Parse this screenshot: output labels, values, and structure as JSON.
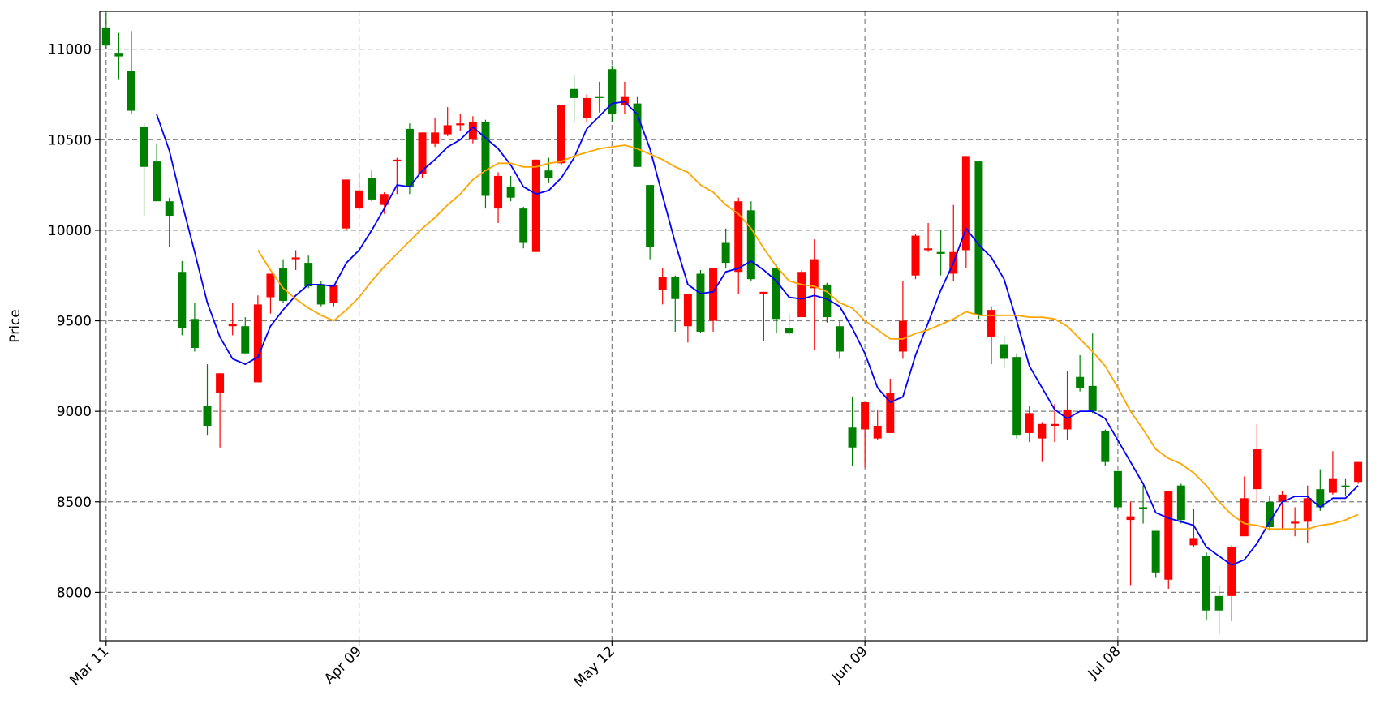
{
  "chart_data": {
    "type": "candlestick",
    "y_label": "Price",
    "categories": [
      "Mar 11",
      null,
      null,
      null,
      null,
      null,
      null,
      null,
      null,
      null,
      null,
      null,
      null,
      null,
      null,
      null,
      null,
      null,
      null,
      null,
      "Apr 09",
      null,
      null,
      null,
      null,
      null,
      null,
      null,
      null,
      null,
      null,
      null,
      null,
      null,
      null,
      null,
      null,
      null,
      null,
      null,
      "May 12",
      null,
      null,
      null,
      null,
      null,
      null,
      null,
      null,
      null,
      null,
      null,
      null,
      null,
      null,
      null,
      null,
      null,
      null,
      null,
      "Jun 09",
      null,
      null,
      null,
      null,
      null,
      null,
      null,
      null,
      null,
      null,
      null,
      null,
      null,
      null,
      null,
      null,
      null,
      null,
      null,
      "Jul 08",
      null,
      null,
      null,
      null,
      null,
      null,
      null,
      null,
      null,
      null,
      null,
      null,
      null,
      null,
      null,
      null,
      null,
      null,
      null
    ],
    "open": [
      11120,
      10980,
      10880,
      10570,
      10380,
      10160,
      9770,
      9510,
      9030,
      9100,
      9470,
      9470,
      9160,
      9630,
      9790,
      9840,
      9820,
      9700,
      9600,
      10010,
      10120,
      10290,
      10140,
      10380,
      10560,
      10310,
      10480,
      10530,
      10580,
      10500,
      10600,
      10120,
      10240,
      10120,
      9880,
      10330,
      10370,
      10780,
      10620,
      10740,
      10890,
      10690,
      10700,
      10250,
      9670,
      9740,
      9470,
      9760,
      9500,
      9930,
      9770,
      10110,
      9650,
      9790,
      9460,
      9520,
      9680,
      9700,
      9470,
      8910,
      8900,
      8850,
      8880,
      9330,
      9750,
      9890,
      9880,
      9760,
      9890,
      10380,
      9410,
      9370,
      9300,
      8880,
      8850,
      8920,
      8900,
      9190,
      9140,
      8890,
      8670,
      8400,
      8470,
      8340,
      8070,
      8590,
      8260,
      8200,
      7980,
      7980,
      8310,
      8570,
      8500,
      8500,
      8380,
      8390,
      8570,
      8550,
      8590,
      8610
    ],
    "high": [
      11200,
      11090,
      11100,
      10590,
      10480,
      10180,
      9830,
      9600,
      9260,
      9210,
      9600,
      9520,
      9640,
      9760,
      9840,
      9890,
      9860,
      9720,
      9700,
      10280,
      10320,
      10330,
      10210,
      10400,
      10590,
      10540,
      10620,
      10680,
      10640,
      10630,
      10610,
      10320,
      10300,
      10130,
      10390,
      10400,
      10690,
      10860,
      10750,
      10820,
      10910,
      10820,
      10740,
      10250,
      9790,
      9750,
      9650,
      9780,
      9790,
      10010,
      10180,
      10160,
      9660,
      9810,
      9540,
      9780,
      9950,
      9710,
      9500,
      9080,
      9050,
      9010,
      9180,
      9720,
      9980,
      10040,
      10000,
      10140,
      10410,
      10380,
      9580,
      9420,
      9320,
      9030,
      8940,
      9040,
      9220,
      9310,
      9430,
      8900,
      8670,
      8500,
      8590,
      8340,
      8560,
      8600,
      8460,
      8220,
      8040,
      8260,
      8640,
      8930,
      8530,
      8560,
      8470,
      8590,
      8680,
      8780,
      8630,
      8720
    ],
    "low": [
      11000,
      10830,
      10640,
      10080,
      10160,
      9910,
      9420,
      9330,
      8870,
      8800,
      9420,
      9320,
      9160,
      9540,
      9600,
      9780,
      9680,
      9580,
      9580,
      10000,
      10110,
      10160,
      10090,
      10200,
      10200,
      10290,
      10460,
      10520,
      10550,
      10480,
      10120,
      10040,
      10160,
      9900,
      9880,
      10260,
      10360,
      10600,
      10600,
      10650,
      10600,
      10640,
      10350,
      9840,
      9590,
      9440,
      9380,
      9430,
      9440,
      9790,
      9650,
      9720,
      9390,
      9430,
      9420,
      9520,
      9340,
      9490,
      9290,
      8700,
      8690,
      8840,
      8880,
      9290,
      9730,
      9880,
      9750,
      9720,
      9790,
      9510,
      9260,
      9240,
      8850,
      8830,
      8720,
      8830,
      8840,
      9110,
      8990,
      8700,
      8460,
      8040,
      8380,
      8080,
      8020,
      8380,
      8250,
      7850,
      7770,
      7840,
      8310,
      8500,
      8340,
      8350,
      8310,
      8270,
      8450,
      8540,
      8530,
      8600
    ],
    "close": [
      11020,
      10960,
      10660,
      10350,
      10160,
      10080,
      9460,
      9350,
      8920,
      9210,
      9480,
      9320,
      9590,
      9760,
      9610,
      9850,
      9690,
      9590,
      9700,
      10280,
      10220,
      10170,
      10200,
      10390,
      10240,
      10540,
      10540,
      10580,
      10590,
      10600,
      10190,
      10300,
      10180,
      9930,
      10390,
      10290,
      10690,
      10730,
      10730,
      10730,
      10640,
      10740,
      10350,
      9910,
      9740,
      9620,
      9650,
      9440,
      9790,
      9820,
      10160,
      9730,
      9660,
      9510,
      9430,
      9770,
      9840,
      9520,
      9330,
      8800,
      9050,
      8920,
      9100,
      9500,
      9970,
      9900,
      9870,
      9880,
      10410,
      9530,
      9560,
      9290,
      8870,
      8990,
      8930,
      8930,
      9010,
      9130,
      9000,
      8720,
      8470,
      8420,
      8460,
      8110,
      8560,
      8400,
      8300,
      7900,
      7900,
      8250,
      8520,
      8790,
      8360,
      8540,
      8390,
      8520,
      8470,
      8630,
      8580,
      8720
    ],
    "up_color": "#ff0000",
    "down_color": "#008000",
    "series": [
      {
        "color": "#0000ff",
        "values": [
          null,
          null,
          null,
          null,
          10640,
          10440,
          10150,
          9880,
          9600,
          9410,
          9290,
          9260,
          9300,
          9470,
          9560,
          9640,
          9700,
          9700,
          9690,
          9820,
          9890,
          10000,
          10120,
          10250,
          10240,
          10330,
          10390,
          10460,
          10500,
          10570,
          10510,
          10450,
          10360,
          10240,
          10200,
          10220,
          10290,
          10400,
          10560,
          10630,
          10700,
          10710,
          10640,
          10450,
          10190,
          9930,
          9700,
          9650,
          9660,
          9770,
          9790,
          9830,
          9780,
          9720,
          9630,
          9620,
          9640,
          9620,
          9580,
          9460,
          9320,
          9130,
          9050,
          9080,
          9310,
          9490,
          9670,
          9820,
          10010,
          9920,
          9850,
          9730,
          9500,
          9250,
          9130,
          9010,
          8960,
          9000,
          9000,
          8960,
          8840,
          8720,
          8600,
          8440,
          8410,
          8390,
          8370,
          8250,
          8200,
          8150,
          8180,
          8270,
          8390,
          8500,
          8530,
          8530,
          8470,
          8520,
          8520,
          8590
        ]
      },
      {
        "color": "#ffa500",
        "values": [
          null,
          null,
          null,
          null,
          null,
          null,
          null,
          null,
          null,
          null,
          null,
          null,
          9890,
          9780,
          9680,
          9620,
          9570,
          9530,
          9500,
          9560,
          9630,
          9720,
          9800,
          9870,
          9940,
          10010,
          10070,
          10140,
          10200,
          10280,
          10330,
          10370,
          10370,
          10350,
          10350,
          10370,
          10380,
          10410,
          10430,
          10450,
          10460,
          10470,
          10450,
          10420,
          10390,
          10350,
          10320,
          10250,
          10210,
          10140,
          10090,
          10010,
          9900,
          9800,
          9720,
          9700,
          9690,
          9660,
          9600,
          9570,
          9500,
          9450,
          9400,
          9400,
          9430,
          9450,
          9480,
          9510,
          9550,
          9530,
          9530,
          9530,
          9530,
          9520,
          9520,
          9510,
          9470,
          9400,
          9330,
          9250,
          9130,
          9000,
          8900,
          8790,
          8740,
          8710,
          8660,
          8590,
          8500,
          8430,
          8380,
          8370,
          8350,
          8350,
          8350,
          8350,
          8370,
          8380,
          8400,
          8430
        ]
      }
    ],
    "ylim": [
      7733,
      11209
    ],
    "yticks": [
      8000,
      8500,
      9000,
      9500,
      10000,
      10500,
      11000
    ],
    "grid": true
  }
}
